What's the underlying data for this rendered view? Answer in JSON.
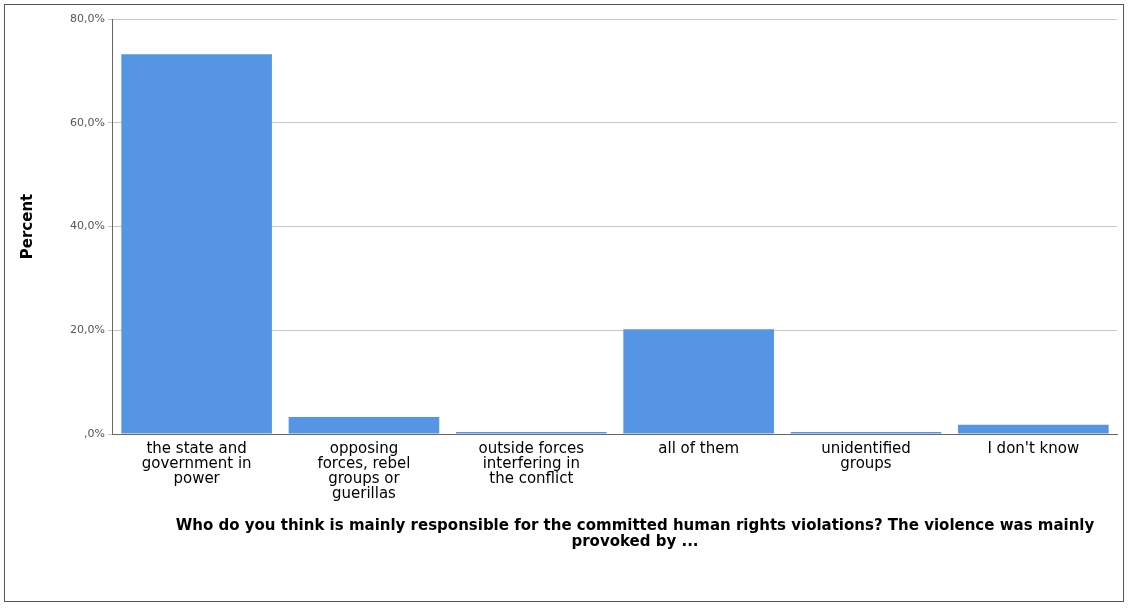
{
  "chart_data": {
    "type": "bar",
    "categories": [
      "the state and government in power",
      "opposing forces, rebel groups or guerillas",
      "outside forces interfering in the conflict",
      "all of them",
      "unidentified groups",
      "I don't know"
    ],
    "values": [
      73.2,
      3.3,
      0.4,
      20.2,
      0.4,
      1.8
    ],
    "color": "#5595e3",
    "ylabel": "Percent",
    "xlabel": "Who do you think is mainly responsible for the committed human rights violations? The violence was mainly provoked by ...",
    "ylim": [
      0,
      80
    ],
    "yticks": [
      {
        "value": 0,
        "label": ",0%"
      },
      {
        "value": 20,
        "label": "20,0%"
      },
      {
        "value": 40,
        "label": "40,0%"
      },
      {
        "value": 60,
        "label": "60,0%"
      },
      {
        "value": 80,
        "label": "80,0%"
      }
    ],
    "grid": "y",
    "legend": false
  }
}
